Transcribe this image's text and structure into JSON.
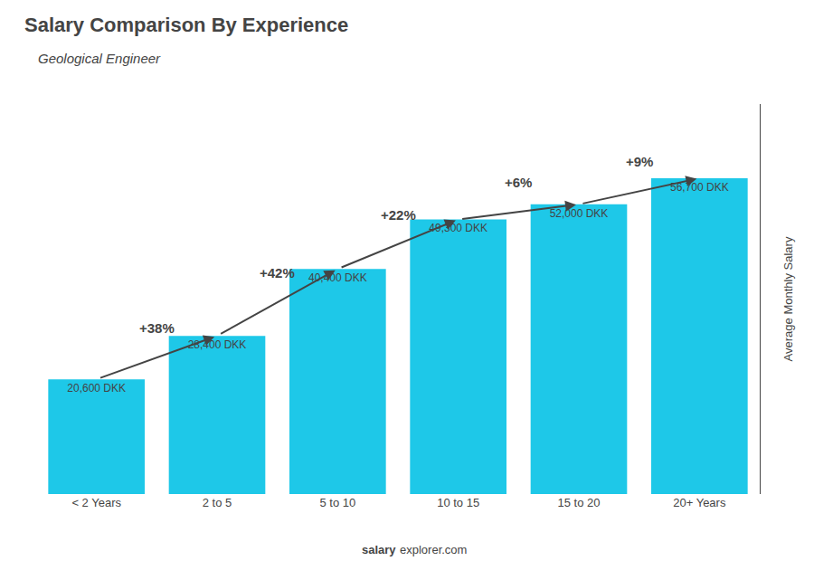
{
  "chart_data": {
    "type": "bar",
    "title": "Salary Comparison By Experience",
    "subtitle": "Geological Engineer",
    "categories": [
      "< 2 Years",
      "2 to 5",
      "5 to 10",
      "10 to 15",
      "15 to 20",
      "20+ Years"
    ],
    "values": [
      20600,
      28400,
      40400,
      49300,
      52000,
      56700
    ],
    "value_labels": [
      "20,600 DKK",
      "28,400 DKK",
      "40,400 DKK",
      "49,300 DKK",
      "52,000 DKK",
      "56,700 DKK"
    ],
    "data_labels": true,
    "annotations": [
      "+38%",
      "+42%",
      "+22%",
      "+6%",
      "+9%"
    ],
    "ylabel": "Average Monthly Salary",
    "watermark": [
      "salary",
      "explorer.com"
    ],
    "color": "#1ec8e8",
    "ylim": [
      0,
      70000
    ],
    "yticks": [],
    "tick_labels": "x",
    "grid": false
  }
}
